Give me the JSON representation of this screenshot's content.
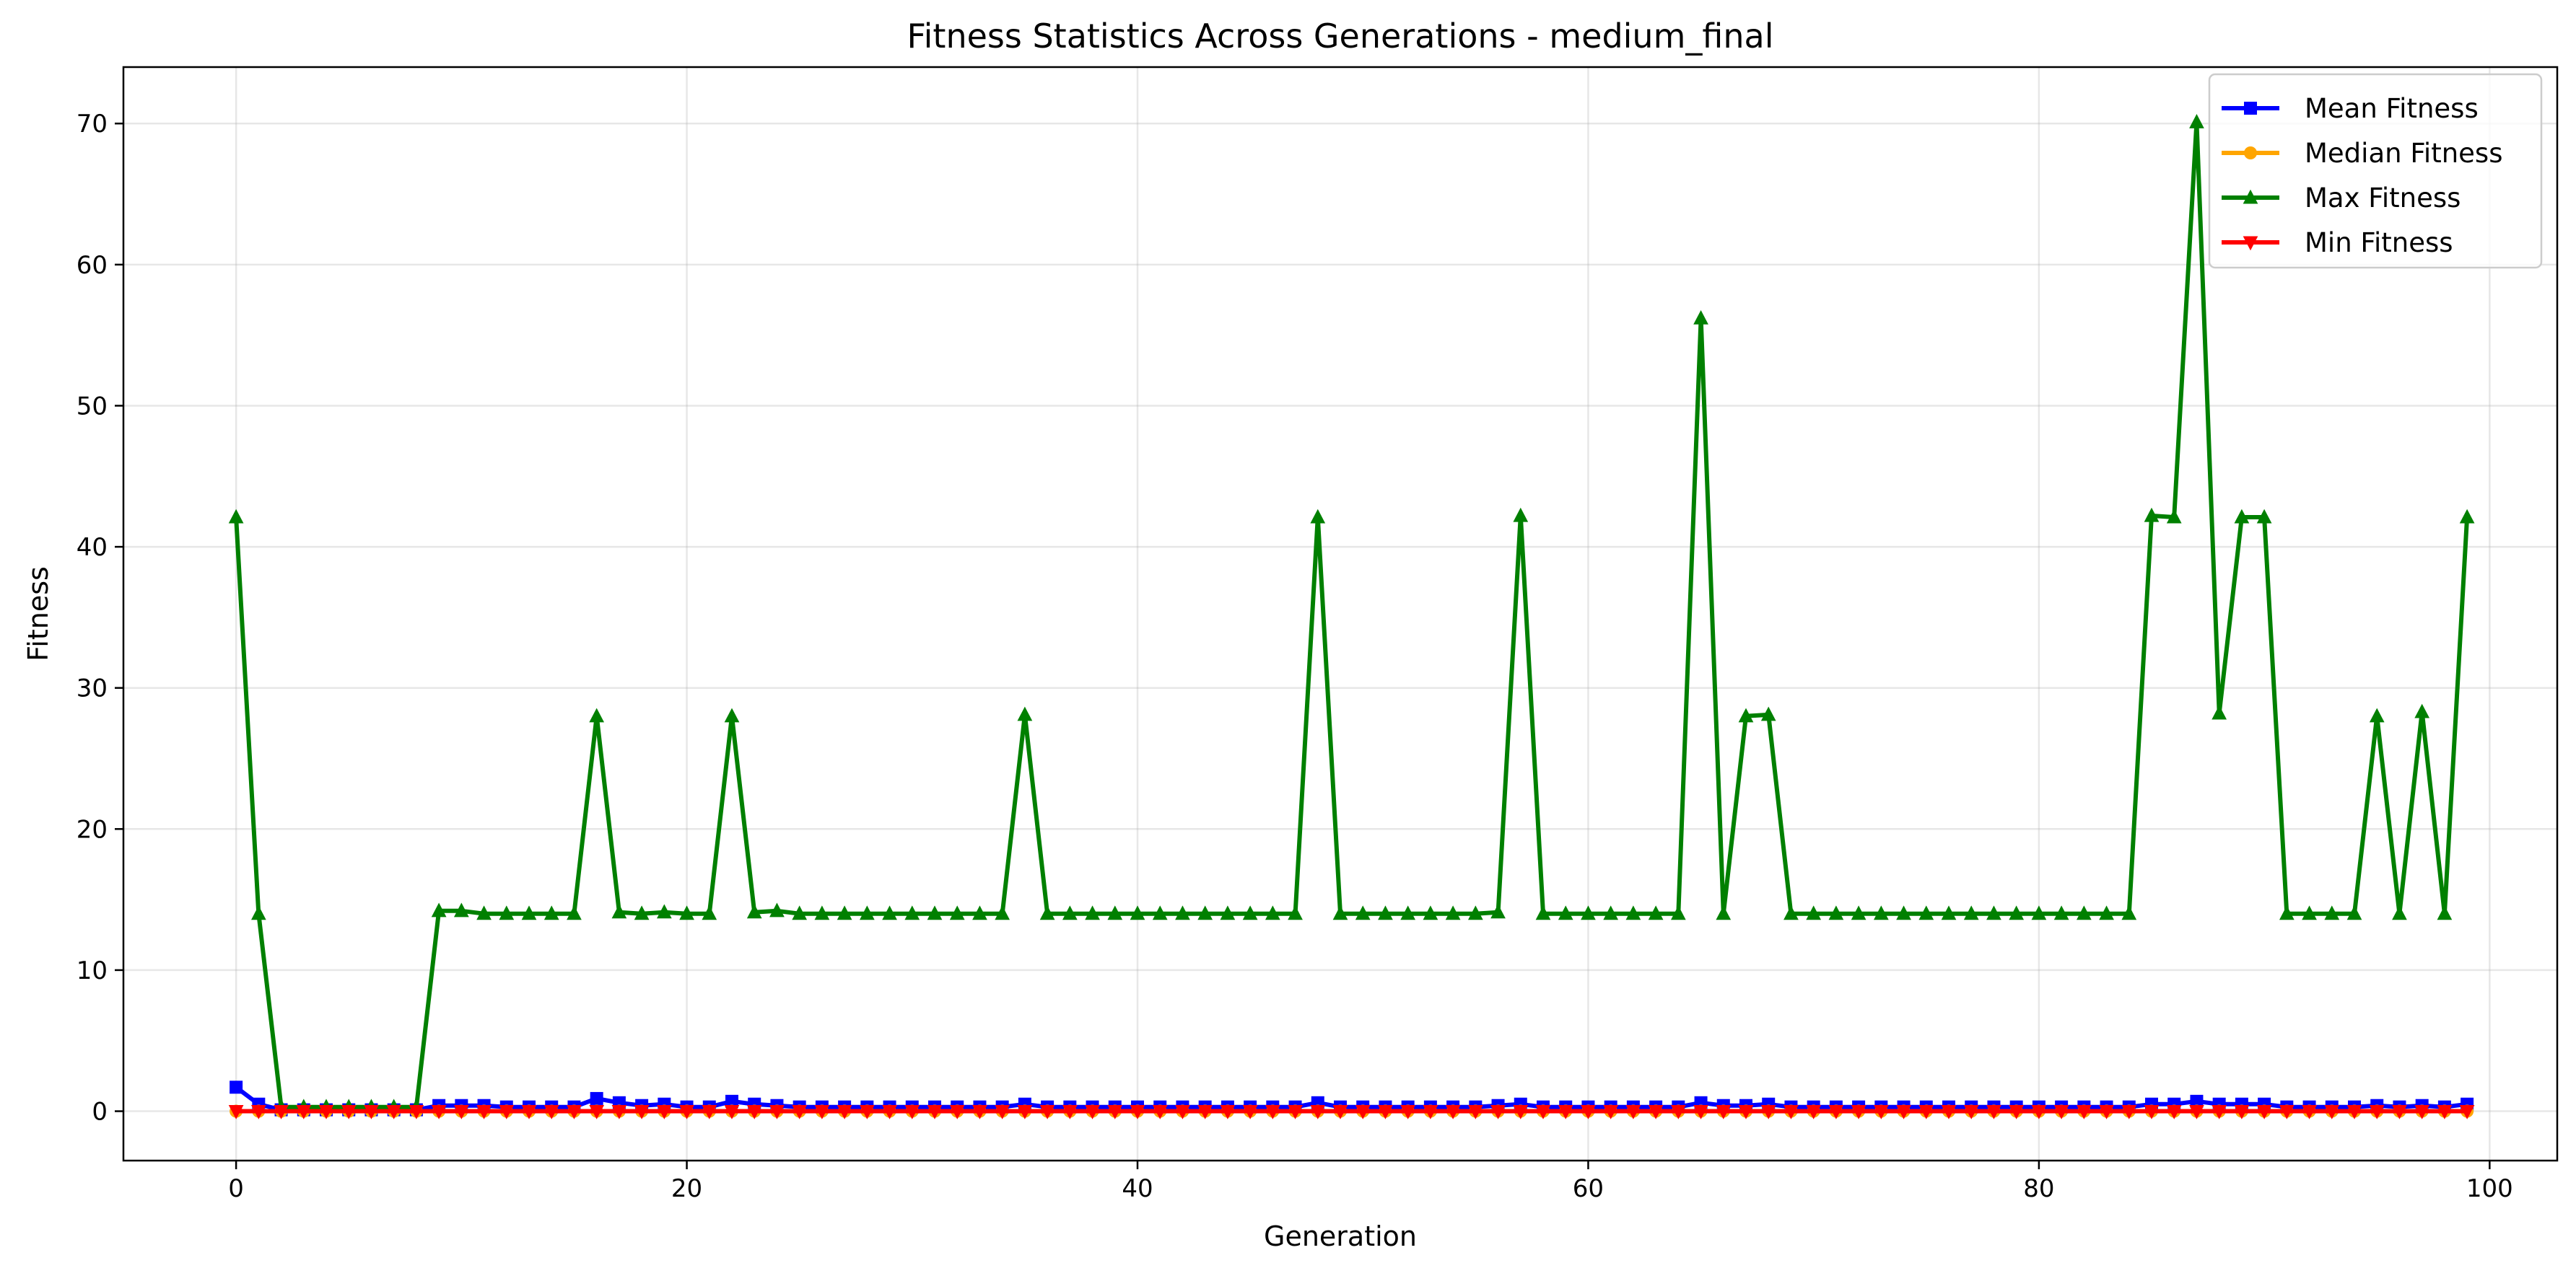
{
  "chart_data": {
    "type": "line",
    "title": "Fitness Statistics Across Generations - medium_final",
    "xlabel": "Generation",
    "ylabel": "Fitness",
    "xlim": [
      -5,
      103
    ],
    "ylim": [
      -3.5,
      74
    ],
    "xticks": [
      0,
      20,
      40,
      60,
      80,
      100
    ],
    "yticks": [
      0,
      10,
      20,
      30,
      40,
      50,
      60,
      70
    ],
    "grid": true,
    "legend_position": "top-right",
    "series": [
      {
        "name": "Mean Fitness",
        "color": "#0000ff",
        "marker": "square",
        "values": [
          1.7,
          0.5,
          0.1,
          0.1,
          0.1,
          0.1,
          0.1,
          0.1,
          0.1,
          0.4,
          0.4,
          0.4,
          0.3,
          0.3,
          0.3,
          0.3,
          0.9,
          0.6,
          0.4,
          0.5,
          0.3,
          0.3,
          0.7,
          0.5,
          0.4,
          0.3,
          0.3,
          0.3,
          0.3,
          0.3,
          0.3,
          0.3,
          0.3,
          0.3,
          0.3,
          0.5,
          0.3,
          0.3,
          0.3,
          0.3,
          0.3,
          0.3,
          0.3,
          0.3,
          0.3,
          0.3,
          0.3,
          0.3,
          0.6,
          0.3,
          0.3,
          0.3,
          0.3,
          0.3,
          0.3,
          0.3,
          0.4,
          0.5,
          0.3,
          0.3,
          0.3,
          0.3,
          0.3,
          0.3,
          0.3,
          0.6,
          0.4,
          0.4,
          0.5,
          0.3,
          0.3,
          0.3,
          0.3,
          0.3,
          0.3,
          0.3,
          0.3,
          0.3,
          0.3,
          0.3,
          0.3,
          0.3,
          0.3,
          0.3,
          0.3,
          0.5,
          0.5,
          0.7,
          0.5,
          0.5,
          0.5,
          0.3,
          0.3,
          0.3,
          0.3,
          0.4,
          0.3,
          0.4,
          0.3,
          0.5
        ]
      },
      {
        "name": "Median Fitness",
        "color": "#ffa500",
        "marker": "circle",
        "values": [
          0.0,
          0.0,
          0.0,
          0.0,
          0.0,
          0.0,
          0.0,
          0.0,
          0.0,
          0.0,
          0.0,
          0.0,
          0.0,
          0.0,
          0.0,
          0.0,
          0.0,
          0.0,
          0.0,
          0.0,
          0.0,
          0.0,
          0.0,
          0.0,
          0.0,
          0.0,
          0.0,
          0.0,
          0.0,
          0.0,
          0.0,
          0.0,
          0.0,
          0.0,
          0.0,
          0.0,
          0.0,
          0.0,
          0.0,
          0.0,
          0.0,
          0.0,
          0.0,
          0.0,
          0.0,
          0.0,
          0.0,
          0.0,
          0.0,
          0.0,
          0.0,
          0.0,
          0.0,
          0.0,
          0.0,
          0.0,
          0.0,
          0.0,
          0.0,
          0.0,
          0.0,
          0.0,
          0.0,
          0.0,
          0.0,
          0.0,
          0.0,
          0.0,
          0.0,
          0.0,
          0.0,
          0.0,
          0.0,
          0.0,
          0.0,
          0.0,
          0.0,
          0.0,
          0.0,
          0.0,
          0.0,
          0.0,
          0.0,
          0.0,
          0.0,
          0.0,
          0.0,
          0.0,
          0.0,
          0.0,
          0.0,
          0.0,
          0.0,
          0.0,
          0.0,
          0.0,
          0.0,
          0.0,
          0.0,
          0.0
        ]
      },
      {
        "name": "Max Fitness",
        "color": "#008000",
        "marker": "triangle-up",
        "values": [
          42.1,
          14.0,
          0.3,
          0.3,
          0.3,
          0.3,
          0.3,
          0.3,
          0.3,
          14.2,
          14.2,
          14.0,
          14.0,
          14.0,
          14.0,
          14.0,
          28.0,
          14.1,
          14.0,
          14.1,
          14.0,
          14.0,
          28.0,
          14.1,
          14.2,
          14.0,
          14.0,
          14.0,
          14.0,
          14.0,
          14.0,
          14.0,
          14.0,
          14.0,
          14.0,
          28.1,
          14.0,
          14.0,
          14.0,
          14.0,
          14.0,
          14.0,
          14.0,
          14.0,
          14.0,
          14.0,
          14.0,
          14.0,
          42.1,
          14.0,
          14.0,
          14.0,
          14.0,
          14.0,
          14.0,
          14.0,
          14.1,
          42.2,
          14.0,
          14.0,
          14.0,
          14.0,
          14.0,
          14.0,
          14.0,
          56.2,
          14.0,
          28.0,
          28.1,
          14.0,
          14.0,
          14.0,
          14.0,
          14.0,
          14.0,
          14.0,
          14.0,
          14.0,
          14.0,
          14.0,
          14.0,
          14.0,
          14.0,
          14.0,
          14.0,
          42.2,
          42.1,
          70.1,
          28.2,
          42.1,
          42.1,
          14.0,
          14.0,
          14.0,
          14.0,
          28.0,
          14.0,
          28.3,
          14.0,
          42.1
        ]
      },
      {
        "name": "Min Fitness",
        "color": "#ff0000",
        "marker": "triangle-down",
        "values": [
          0.0,
          0.0,
          0.0,
          0.0,
          0.0,
          0.0,
          0.0,
          0.0,
          0.0,
          0.0,
          0.0,
          0.0,
          0.0,
          0.0,
          0.0,
          0.0,
          0.0,
          0.0,
          0.0,
          0.0,
          0.0,
          0.0,
          0.0,
          0.0,
          0.0,
          0.0,
          0.0,
          0.0,
          0.0,
          0.0,
          0.0,
          0.0,
          0.0,
          0.0,
          0.0,
          0.0,
          0.0,
          0.0,
          0.0,
          0.0,
          0.0,
          0.0,
          0.0,
          0.0,
          0.0,
          0.0,
          0.0,
          0.0,
          0.0,
          0.0,
          0.0,
          0.0,
          0.0,
          0.0,
          0.0,
          0.0,
          0.0,
          0.0,
          0.0,
          0.0,
          0.0,
          0.0,
          0.0,
          0.0,
          0.0,
          0.0,
          0.0,
          0.0,
          0.0,
          0.0,
          0.0,
          0.0,
          0.0,
          0.0,
          0.0,
          0.0,
          0.0,
          0.0,
          0.0,
          0.0,
          0.0,
          0.0,
          0.0,
          0.0,
          0.0,
          0.0,
          0.0,
          0.0,
          0.0,
          0.0,
          0.0,
          0.0,
          0.0,
          0.0,
          0.0,
          0.0,
          0.0,
          0.0,
          0.0,
          0.0
        ]
      }
    ]
  }
}
